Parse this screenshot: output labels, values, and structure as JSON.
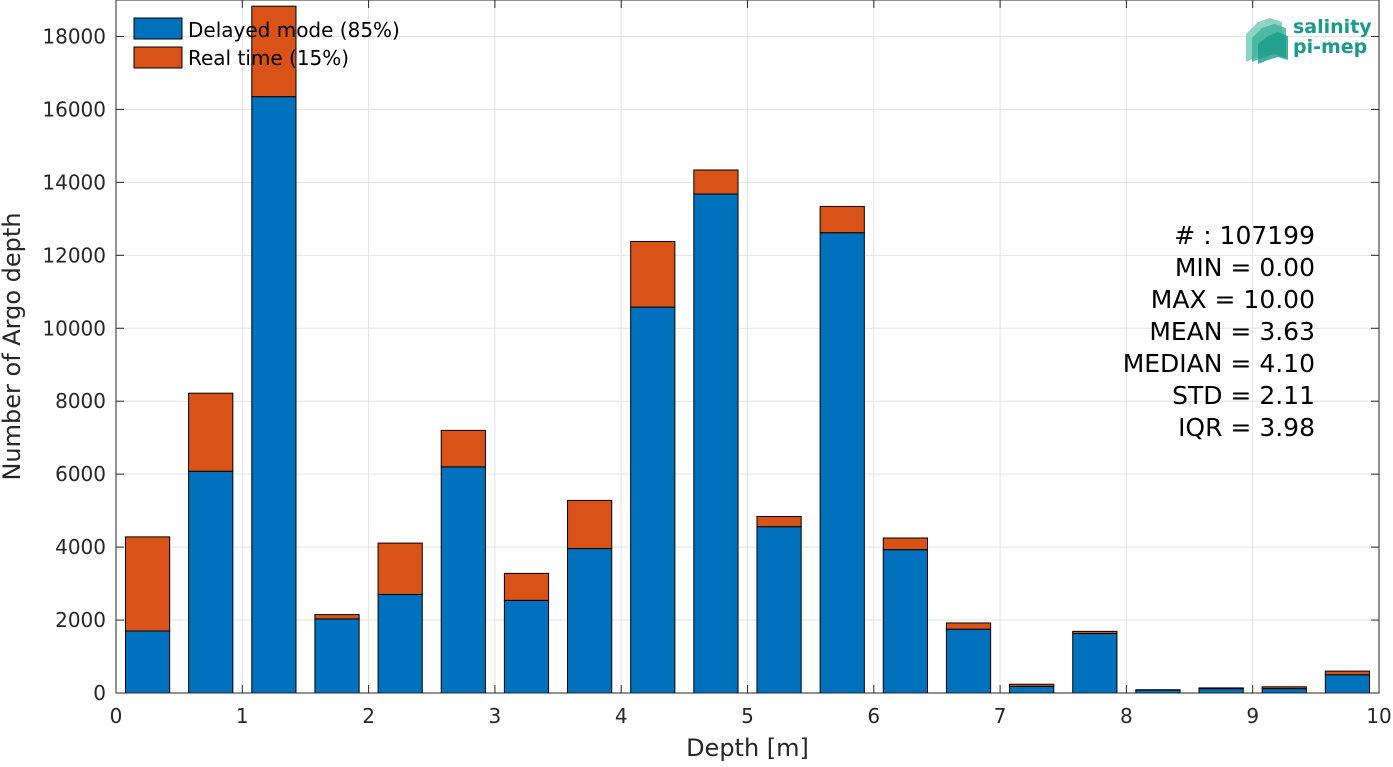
{
  "chart_data": {
    "type": "bar",
    "stacked": true,
    "xlabel": "Depth [m]",
    "ylabel": "Number of Argo depth",
    "xlim": [
      0,
      10
    ],
    "ylim": [
      0,
      19000
    ],
    "xticks": [
      0,
      1,
      2,
      3,
      4,
      5,
      6,
      7,
      8,
      9,
      10
    ],
    "yticks": [
      0,
      2000,
      4000,
      6000,
      8000,
      10000,
      12000,
      14000,
      16000,
      18000
    ],
    "grid": true,
    "legend_position": "top-left",
    "bin_width": 0.5,
    "bar_width_fraction": 0.7,
    "x": [
      0.25,
      0.75,
      1.25,
      1.75,
      2.25,
      2.75,
      3.25,
      3.75,
      4.25,
      4.75,
      5.25,
      5.75,
      6.25,
      6.75,
      7.25,
      7.75,
      8.25,
      8.75,
      9.25,
      9.75
    ],
    "series": [
      {
        "name": "Delayed mode (85%)",
        "color": "#0072BD",
        "values": [
          1700,
          6080,
          16350,
          2030,
          2700,
          6200,
          2540,
          3960,
          10580,
          13680,
          4560,
          12620,
          3930,
          1750,
          180,
          1630,
          80,
          120,
          120,
          500
        ]
      },
      {
        "name": "Real time (15%)",
        "color": "#D95319",
        "values": [
          2580,
          2140,
          2480,
          120,
          1410,
          1000,
          740,
          1320,
          1800,
          660,
          280,
          720,
          320,
          170,
          60,
          60,
          10,
          20,
          50,
          100
        ]
      }
    ],
    "stats": [
      "# : 107199",
      "MIN = 0.00",
      "MAX =  10.00",
      "MEAN = 3.63",
      "MEDIAN = 4.10",
      "STD = 2.11",
      "IQR = 3.98"
    ]
  },
  "logo": {
    "line1": "salinity",
    "line2": "pi-mep"
  }
}
